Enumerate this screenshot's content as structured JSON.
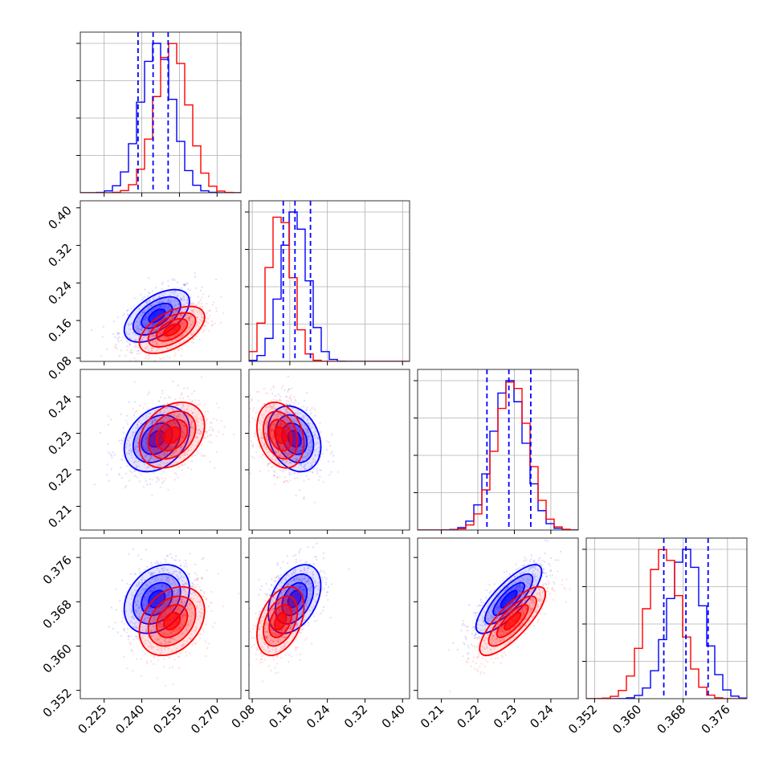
{
  "chart_data": {
    "type": "corner",
    "grid": true,
    "colors": {
      "series_a": "#0000ff",
      "series_b": "#ff0000"
    },
    "series": [
      {
        "color": "#0000ff",
        "mean": [
          0.246,
          0.17,
          0.2285,
          0.3685
        ],
        "sd": [
          0.0065,
          0.028,
          0.0045,
          0.0031
        ]
      },
      {
        "color": "#ff0000",
        "mean": [
          0.252,
          0.14,
          0.2295,
          0.3645
        ],
        "sd": [
          0.0065,
          0.025,
          0.0045,
          0.0031
        ]
      }
    ],
    "correlations": [
      {
        "row": 1,
        "col": 0,
        "rho": 0.55
      },
      {
        "row": 2,
        "col": 0,
        "rho": 0.3
      },
      {
        "row": 2,
        "col": 1,
        "rho": -0.25
      },
      {
        "row": 3,
        "col": 0,
        "rho": 0.3
      },
      {
        "row": 3,
        "col": 1,
        "rho": 0.4
      },
      {
        "row": 3,
        "col": 2,
        "rho": 0.8
      }
    ],
    "quantile_lines": [
      [
        0.2385,
        0.2445,
        0.2505
      ],
      [
        0.146,
        0.171,
        0.204
      ],
      [
        0.2225,
        0.2285,
        0.2345
      ],
      [
        0.3645,
        0.3685,
        0.3725
      ]
    ],
    "axes": [
      {
        "range": [
          0.2155,
          0.2795
        ],
        "ticks": [
          0.225,
          0.24,
          0.255,
          0.27
        ],
        "tick_labels": [
          "0.225",
          "0.240",
          "0.255",
          "0.270"
        ]
      },
      {
        "range": [
          0.073,
          0.415
        ],
        "ticks": [
          0.08,
          0.16,
          0.24,
          0.32,
          0.4
        ],
        "tick_labels": [
          "0.08",
          "0.16",
          "0.24",
          "0.32",
          "0.40"
        ]
      },
      {
        "range": [
          0.2035,
          0.2475
        ],
        "ticks": [
          0.21,
          0.22,
          0.23,
          0.24
        ],
        "tick_labels": [
          "0.21",
          "0.22",
          "0.23",
          "0.24"
        ]
      },
      {
        "range": [
          0.3505,
          0.3795
        ],
        "ticks": [
          0.352,
          0.36,
          0.368,
          0.376
        ],
        "tick_labels": [
          "0.352",
          "0.360",
          "0.368",
          "0.376"
        ]
      }
    ],
    "diag_hist_ticks": 4
  }
}
